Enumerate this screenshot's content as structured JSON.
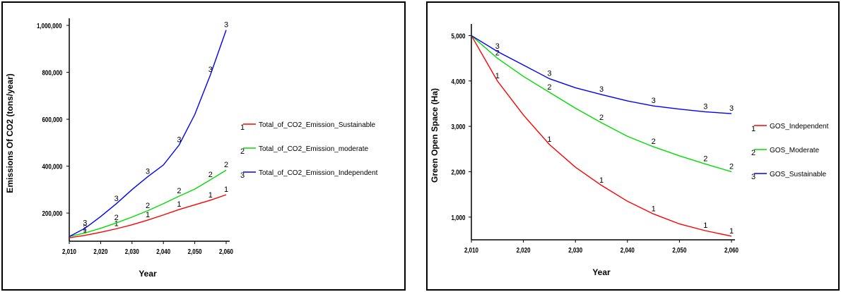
{
  "chart_data": [
    {
      "type": "line",
      "ylabel": "Emissions Of CO2 (tons/year)",
      "xlabel": "Year",
      "xlim": [
        2010,
        2060
      ],
      "ylim": [
        80000,
        1000000
      ],
      "x_ticks": [
        "2,010",
        "2,020",
        "2,030",
        "2,040",
        "2,050",
        "2,060"
      ],
      "y_ticks": [
        "200,000",
        "400,000",
        "600,000",
        "800,000",
        "1,000,000"
      ],
      "x": [
        2010,
        2015,
        2020,
        2025,
        2030,
        2035,
        2040,
        2045,
        2050,
        2055,
        2060
      ],
      "series": [
        {
          "name": "Total_of_CO2_Emission_Sustainable",
          "marker": "1",
          "color": "#ff0000",
          "values": [
            95000,
            105000,
            118000,
            133000,
            150000,
            170000,
            192000,
            215000,
            235000,
            255000,
            278000
          ]
        },
        {
          "name": "Total_of_CO2_Emission_moderate",
          "marker": "2",
          "color": "#00dd00",
          "values": [
            100000,
            115000,
            135000,
            158000,
            183000,
            210000,
            240000,
            272000,
            302000,
            342000,
            383000
          ]
        },
        {
          "name": "Total_of_CO2_Emission_Independent",
          "marker": "3",
          "color": "#0000ff",
          "values": [
            100000,
            135000,
            185000,
            240000,
            300000,
            355000,
            405000,
            490000,
            620000,
            790000,
            980000
          ]
        }
      ],
      "legend_position": "right"
    },
    {
      "type": "line",
      "ylabel": "Green Open Space (Ha)",
      "xlabel": "Year",
      "xlim": [
        2010,
        2060
      ],
      "ylim": [
        500,
        5100
      ],
      "x_ticks": [
        "2,010",
        "2,020",
        "2,030",
        "2,040",
        "2,050",
        "2,060"
      ],
      "y_ticks": [
        "1,000",
        "2,000",
        "3,000",
        "4,000",
        "5,000"
      ],
      "x": [
        2010,
        2015,
        2020,
        2025,
        2030,
        2035,
        2040,
        2045,
        2050,
        2055,
        2060
      ],
      "series": [
        {
          "name": "GOS_Independent",
          "marker": "1",
          "color": "#ff0000",
          "values": [
            5000,
            4000,
            3250,
            2600,
            2100,
            1700,
            1350,
            1070,
            850,
            700,
            580
          ]
        },
        {
          "name": "GOS_Moderate",
          "marker": "2",
          "color": "#00dd00",
          "values": [
            5000,
            4500,
            4100,
            3750,
            3400,
            3080,
            2780,
            2550,
            2350,
            2170,
            2000
          ]
        },
        {
          "name": "GOS_Sustainable",
          "marker": "3",
          "color": "#0000ff",
          "values": [
            5000,
            4650,
            4350,
            4050,
            3850,
            3700,
            3560,
            3450,
            3380,
            3320,
            3280
          ]
        }
      ],
      "legend_position": "right"
    }
  ]
}
